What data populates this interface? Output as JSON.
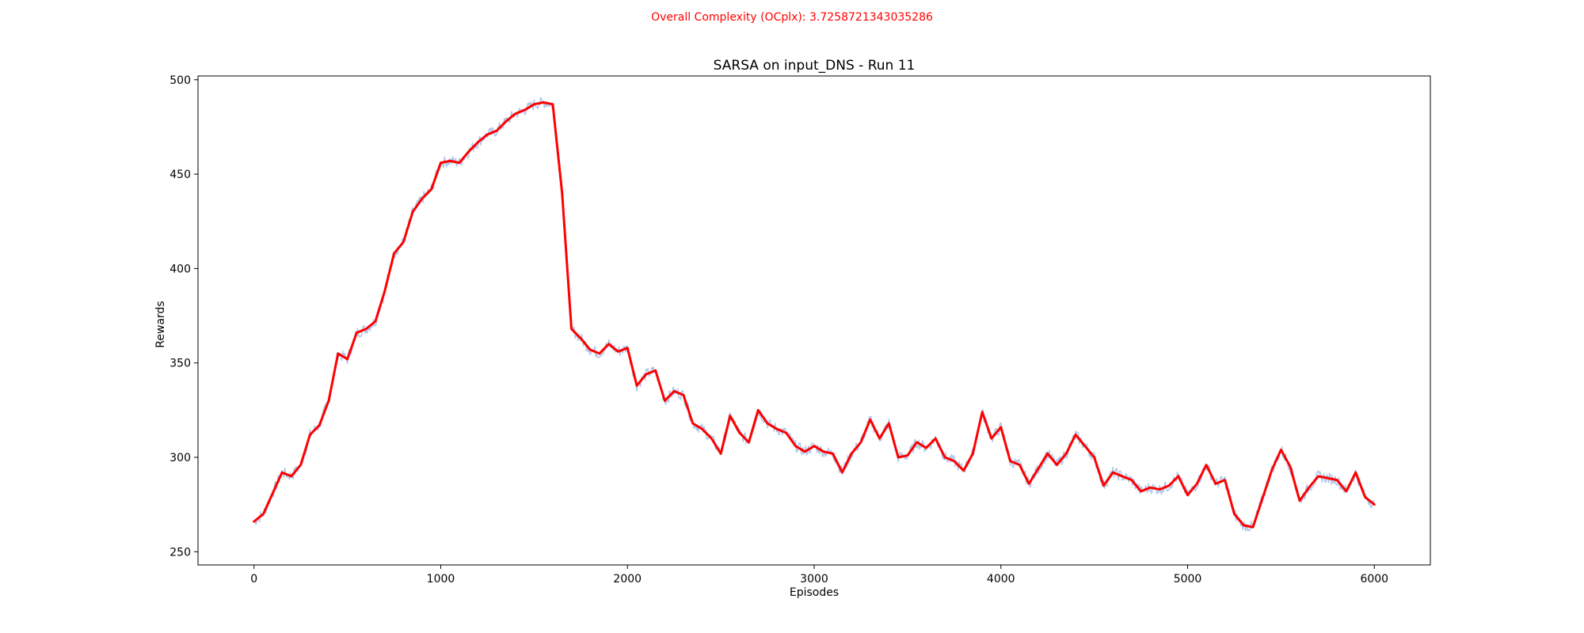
{
  "figure": {
    "suptitle": "Overall Complexity (OCplx): 3.7258721343035286",
    "suptitle_color": "#ff0000"
  },
  "chart_data": {
    "type": "line",
    "title": "SARSA on input_DNS - Run 11",
    "xlabel": "Episodes",
    "ylabel": "Rewards",
    "xlim": [
      -300,
      6300
    ],
    "ylim": [
      243,
      502
    ],
    "xticks": [
      0,
      1000,
      2000,
      3000,
      4000,
      5000,
      6000
    ],
    "yticks": [
      250,
      300,
      350,
      400,
      450,
      500
    ],
    "grid": false,
    "legend": "none",
    "series": [
      {
        "role": "raw",
        "color": "#aec7e8",
        "noise_amplitude": 3,
        "x": [
          0,
          50,
          100,
          150,
          200,
          250,
          300,
          350,
          400,
          450,
          500,
          550,
          600,
          650,
          700,
          750,
          800,
          850,
          900,
          950,
          1000,
          1050,
          1100,
          1150,
          1200,
          1250,
          1300,
          1350,
          1400,
          1450,
          1500,
          1550,
          1600,
          1650,
          1700,
          1750,
          1800,
          1850,
          1900,
          1950,
          2000,
          2050,
          2100,
          2150,
          2200,
          2250,
          2300,
          2350,
          2400,
          2450,
          2500,
          2550,
          2600,
          2650,
          2700,
          2750,
          2800,
          2850,
          2900,
          2950,
          3000,
          3050,
          3100,
          3150,
          3200,
          3250,
          3300,
          3350,
          3400,
          3450,
          3500,
          3550,
          3600,
          3650,
          3700,
          3750,
          3800,
          3850,
          3900,
          3950,
          4000,
          4050,
          4100,
          4150,
          4200,
          4250,
          4300,
          4350,
          4400,
          4450,
          4500,
          4550,
          4600,
          4650,
          4700,
          4750,
          4800,
          4850,
          4900,
          4950,
          5000,
          5050,
          5100,
          5150,
          5200,
          5250,
          5300,
          5350,
          5400,
          5450,
          5500,
          5550,
          5600,
          5650,
          5700,
          5750,
          5800,
          5850,
          5900,
          5950,
          6000
        ],
        "y": [
          266,
          270,
          281,
          292,
          290,
          296,
          312,
          317,
          330,
          355,
          352,
          366,
          368,
          372,
          388,
          408,
          414,
          430,
          437,
          442,
          456,
          457,
          456,
          462,
          467,
          471,
          473,
          478,
          482,
          484,
          487,
          488,
          487,
          440,
          368,
          363,
          357,
          355,
          360,
          356,
          358,
          338,
          344,
          346,
          330,
          335,
          333,
          318,
          315,
          310,
          302,
          322,
          313,
          308,
          325,
          318,
          315,
          313,
          306,
          303,
          306,
          303,
          302,
          292,
          302,
          308,
          320,
          310,
          318,
          300,
          301,
          308,
          305,
          310,
          300,
          298,
          293,
          302,
          324,
          310,
          316,
          298,
          296,
          286,
          294,
          302,
          296,
          302,
          312,
          306,
          300,
          285,
          292,
          290,
          288,
          282,
          284,
          283,
          285,
          290,
          280,
          286,
          296,
          286,
          288,
          270,
          264,
          263,
          278,
          293,
          304,
          295,
          277,
          284,
          290,
          289,
          288,
          282,
          292,
          279,
          275
        ]
      },
      {
        "role": "smoothed",
        "color": "#ff0000",
        "x": [
          0,
          50,
          100,
          150,
          200,
          250,
          300,
          350,
          400,
          450,
          500,
          550,
          600,
          650,
          700,
          750,
          800,
          850,
          900,
          950,
          1000,
          1050,
          1100,
          1150,
          1200,
          1250,
          1300,
          1350,
          1400,
          1450,
          1500,
          1550,
          1600,
          1650,
          1700,
          1750,
          1800,
          1850,
          1900,
          1950,
          2000,
          2050,
          2100,
          2150,
          2200,
          2250,
          2300,
          2350,
          2400,
          2450,
          2500,
          2550,
          2600,
          2650,
          2700,
          2750,
          2800,
          2850,
          2900,
          2950,
          3000,
          3050,
          3100,
          3150,
          3200,
          3250,
          3300,
          3350,
          3400,
          3450,
          3500,
          3550,
          3600,
          3650,
          3700,
          3750,
          3800,
          3850,
          3900,
          3950,
          4000,
          4050,
          4100,
          4150,
          4200,
          4250,
          4300,
          4350,
          4400,
          4450,
          4500,
          4550,
          4600,
          4650,
          4700,
          4750,
          4800,
          4850,
          4900,
          4950,
          5000,
          5050,
          5100,
          5150,
          5200,
          5250,
          5300,
          5350,
          5400,
          5450,
          5500,
          5550,
          5600,
          5650,
          5700,
          5750,
          5800,
          5850,
          5900,
          5950,
          6000
        ],
        "y": [
          266,
          270,
          281,
          292,
          290,
          296,
          312,
          317,
          330,
          355,
          352,
          366,
          368,
          372,
          388,
          408,
          414,
          430,
          437,
          442,
          456,
          457,
          456,
          462,
          467,
          471,
          473,
          478,
          482,
          484,
          487,
          488,
          487,
          440,
          368,
          363,
          357,
          355,
          360,
          356,
          358,
          338,
          344,
          346,
          330,
          335,
          333,
          318,
          315,
          310,
          302,
          322,
          313,
          308,
          325,
          318,
          315,
          313,
          306,
          303,
          306,
          303,
          302,
          292,
          302,
          308,
          320,
          310,
          318,
          300,
          301,
          308,
          305,
          310,
          300,
          298,
          293,
          302,
          324,
          310,
          316,
          298,
          296,
          286,
          294,
          302,
          296,
          302,
          312,
          306,
          300,
          285,
          292,
          290,
          288,
          282,
          284,
          283,
          285,
          290,
          280,
          286,
          296,
          286,
          288,
          270,
          264,
          263,
          278,
          293,
          304,
          295,
          277,
          284,
          290,
          289,
          288,
          282,
          292,
          279,
          275
        ]
      }
    ]
  }
}
